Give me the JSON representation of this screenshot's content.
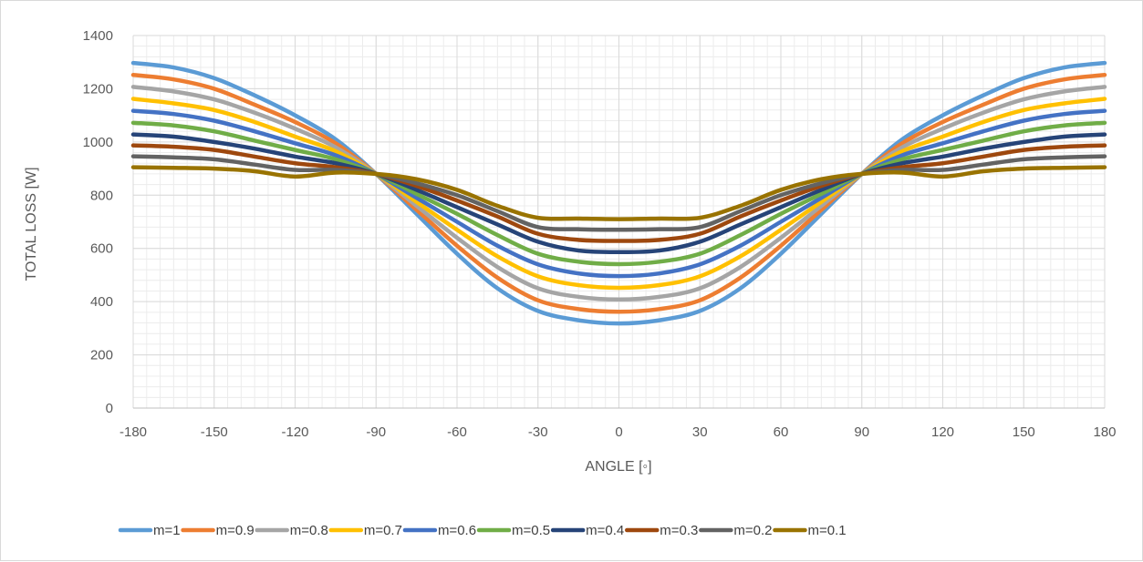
{
  "chart_data": {
    "type": "line",
    "title": "",
    "xlabel": "ANGLE  [◦]",
    "ylabel": "TOTAL LOSS [W]",
    "xlim": [
      -180,
      180
    ],
    "ylim": [
      0,
      1400
    ],
    "xticks": [
      -180,
      -150,
      -120,
      -90,
      -60,
      -30,
      0,
      30,
      60,
      90,
      120,
      150,
      180
    ],
    "yticks": [
      0,
      200,
      400,
      600,
      800,
      1000,
      1200,
      1400
    ],
    "xtick_labels": [
      "-180",
      "-150",
      "-120",
      "-90",
      "-60",
      "-30",
      "0",
      "30",
      "60",
      "90",
      "120",
      "150",
      "180"
    ],
    "ytick_labels": [
      "0",
      "200",
      "400",
      "600",
      "800",
      "1000",
      "1200",
      "1400"
    ],
    "grid": true,
    "legend_position": "bottom",
    "x": [
      -180,
      -165,
      -150,
      -135,
      -120,
      -105,
      -90,
      -75,
      -60,
      -45,
      -30,
      -15,
      0,
      15,
      30,
      45,
      60,
      75,
      90,
      105,
      120,
      135,
      150,
      165,
      180
    ],
    "series": [
      {
        "name": "m=1",
        "color": "#5B9BD5",
        "values": [
          1297,
          1280,
          1240,
          1175,
          1100,
          1010,
          880,
          730,
          580,
          450,
          365,
          330,
          318,
          330,
          365,
          450,
          580,
          730,
          880,
          1010,
          1100,
          1175,
          1240,
          1280,
          1297
        ]
      },
      {
        "name": "m=0.9",
        "color": "#ED7D31",
        "values": [
          1252,
          1235,
          1200,
          1140,
          1075,
          995,
          880,
          745,
          610,
          490,
          405,
          372,
          362,
          372,
          405,
          490,
          610,
          745,
          880,
          995,
          1075,
          1140,
          1200,
          1235,
          1252
        ]
      },
      {
        "name": "m=0.8",
        "color": "#A5A5A5",
        "values": [
          1207,
          1190,
          1160,
          1110,
          1050,
          980,
          880,
          760,
          640,
          530,
          450,
          418,
          408,
          418,
          450,
          530,
          640,
          760,
          880,
          980,
          1050,
          1110,
          1160,
          1190,
          1207
        ]
      },
      {
        "name": "m=0.7",
        "color": "#FFC000",
        "values": [
          1162,
          1145,
          1120,
          1075,
          1020,
          965,
          880,
          775,
          670,
          570,
          495,
          462,
          452,
          462,
          495,
          570,
          670,
          775,
          880,
          965,
          1020,
          1075,
          1120,
          1145,
          1162
        ]
      },
      {
        "name": "m=0.6",
        "color": "#4472C4",
        "values": [
          1117,
          1105,
          1080,
          1040,
          995,
          950,
          880,
          790,
          700,
          610,
          540,
          506,
          496,
          506,
          540,
          610,
          700,
          790,
          880,
          950,
          995,
          1040,
          1080,
          1105,
          1117
        ]
      },
      {
        "name": "m=0.5",
        "color": "#70AD47",
        "values": [
          1072,
          1062,
          1040,
          1005,
          970,
          935,
          880,
          805,
          730,
          650,
          580,
          550,
          541,
          550,
          580,
          650,
          730,
          805,
          880,
          935,
          970,
          1005,
          1040,
          1062,
          1072
        ]
      },
      {
        "name": "m=0.4",
        "color": "#264478",
        "values": [
          1028,
          1020,
          1000,
          975,
          945,
          920,
          880,
          820,
          755,
          690,
          625,
          592,
          586,
          592,
          625,
          690,
          755,
          820,
          880,
          920,
          945,
          975,
          1000,
          1020,
          1028
        ]
      },
      {
        "name": "m=0.3",
        "color": "#9E480E",
        "values": [
          987,
          982,
          970,
          945,
          920,
          905,
          880,
          835,
          780,
          720,
          655,
          632,
          628,
          632,
          655,
          720,
          780,
          835,
          880,
          905,
          920,
          945,
          970,
          982,
          987
        ]
      },
      {
        "name": "m=0.2",
        "color": "#636363",
        "values": [
          946,
          942,
          935,
          915,
          895,
          895,
          880,
          845,
          800,
          740,
          680,
          672,
          670,
          672,
          680,
          740,
          800,
          845,
          880,
          895,
          895,
          915,
          935,
          942,
          946
        ]
      },
      {
        "name": "m=0.1",
        "color": "#997300",
        "values": [
          905,
          903,
          900,
          890,
          870,
          885,
          880,
          860,
          820,
          760,
          715,
          712,
          710,
          712,
          715,
          760,
          820,
          860,
          880,
          885,
          870,
          890,
          900,
          903,
          905
        ]
      }
    ]
  }
}
